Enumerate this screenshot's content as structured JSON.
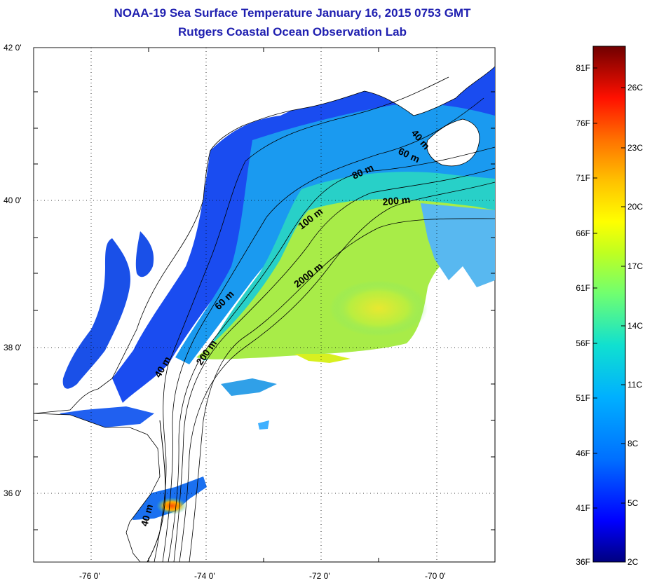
{
  "title": "NOAA-19 Sea Surface Temperature January 16, 2015 0753 GMT",
  "subtitle": "Rutgers Coastal Ocean Observation Lab",
  "map": {
    "lat_range": [
      35,
      42
    ],
    "lon_range": [
      -77,
      -69
    ],
    "lat_ticks": [
      "42 0'",
      "40 0'",
      "38 0'",
      "36 0'"
    ],
    "lon_ticks": [
      "-76 0'",
      "-74 0'",
      "-72 0'",
      "-70 0'"
    ],
    "grid": "dotted",
    "isobath_labels": [
      "40 m",
      "60 m",
      "80 m",
      "200 m",
      "100 m",
      "2000 m",
      "60 m",
      "200 m",
      "40 m",
      "40 m"
    ]
  },
  "colorbar": {
    "fahrenheit": [
      "81F",
      "76F",
      "71F",
      "66F",
      "61F",
      "56F",
      "51F",
      "46F",
      "41F",
      "36F"
    ],
    "celsius": [
      "26C",
      "23C",
      "20C",
      "17C",
      "14C",
      "11C",
      "8C",
      "5C",
      "2C"
    ],
    "colors": [
      "#000080",
      "#0000ff",
      "#0080ff",
      "#00c0ff",
      "#20e0c0",
      "#80ff60",
      "#d0ff20",
      "#ffff00",
      "#ffc000",
      "#ff6000",
      "#ff0000",
      "#b00000",
      "#700000"
    ]
  }
}
